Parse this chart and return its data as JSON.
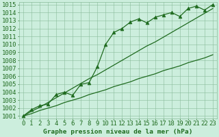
{
  "x_values": [
    0,
    1,
    2,
    3,
    4,
    5,
    6,
    7,
    8,
    9,
    10,
    11,
    12,
    13,
    14,
    15,
    16,
    17,
    18,
    19,
    20,
    21,
    22,
    23
  ],
  "y_data": [
    1001.0,
    1001.8,
    1002.3,
    1002.5,
    1003.7,
    1004.0,
    1003.6,
    1005.0,
    1005.2,
    1007.2,
    1010.0,
    1011.5,
    1012.0,
    1012.8,
    1013.2,
    1012.7,
    1013.4,
    1013.7,
    1014.0,
    1013.5,
    1014.5,
    1014.8,
    1014.3,
    1015.0
  ],
  "y_trend1": [
    1001.0,
    1001.6,
    1002.1,
    1002.7,
    1003.3,
    1003.9,
    1004.5,
    1005.1,
    1005.7,
    1006.2,
    1006.8,
    1007.4,
    1008.0,
    1008.6,
    1009.2,
    1009.8,
    1010.3,
    1010.9,
    1011.5,
    1012.1,
    1012.7,
    1013.3,
    1013.9,
    1014.5
  ],
  "y_trend2": [
    1001.0,
    1001.3,
    1001.7,
    1002.0,
    1002.3,
    1002.7,
    1003.0,
    1003.3,
    1003.7,
    1004.0,
    1004.3,
    1004.7,
    1005.0,
    1005.3,
    1005.7,
    1006.0,
    1006.3,
    1006.7,
    1007.0,
    1007.3,
    1007.7,
    1008.0,
    1008.3,
    1008.7
  ],
  "ylim_min": 1001,
  "ylim_max": 1015,
  "xlim_min": 0,
  "xlim_max": 23,
  "ytick_min": 1001,
  "ytick_max": 1015,
  "xticks": [
    0,
    1,
    2,
    3,
    4,
    5,
    6,
    7,
    8,
    9,
    10,
    11,
    12,
    13,
    14,
    15,
    16,
    17,
    18,
    19,
    20,
    21,
    22,
    23
  ],
  "xlabel": "Graphe pression niveau de la mer (hPa)",
  "line_color": "#1f6b1f",
  "bg_color": "#cceedd",
  "grid_color": "#88bb99",
  "tick_color": "#1f6b1f",
  "marker_symbol": "^",
  "marker_size": 3.5,
  "line_width": 0.9,
  "tick_fontsize": 6.5,
  "xlabel_fontsize": 6.8
}
